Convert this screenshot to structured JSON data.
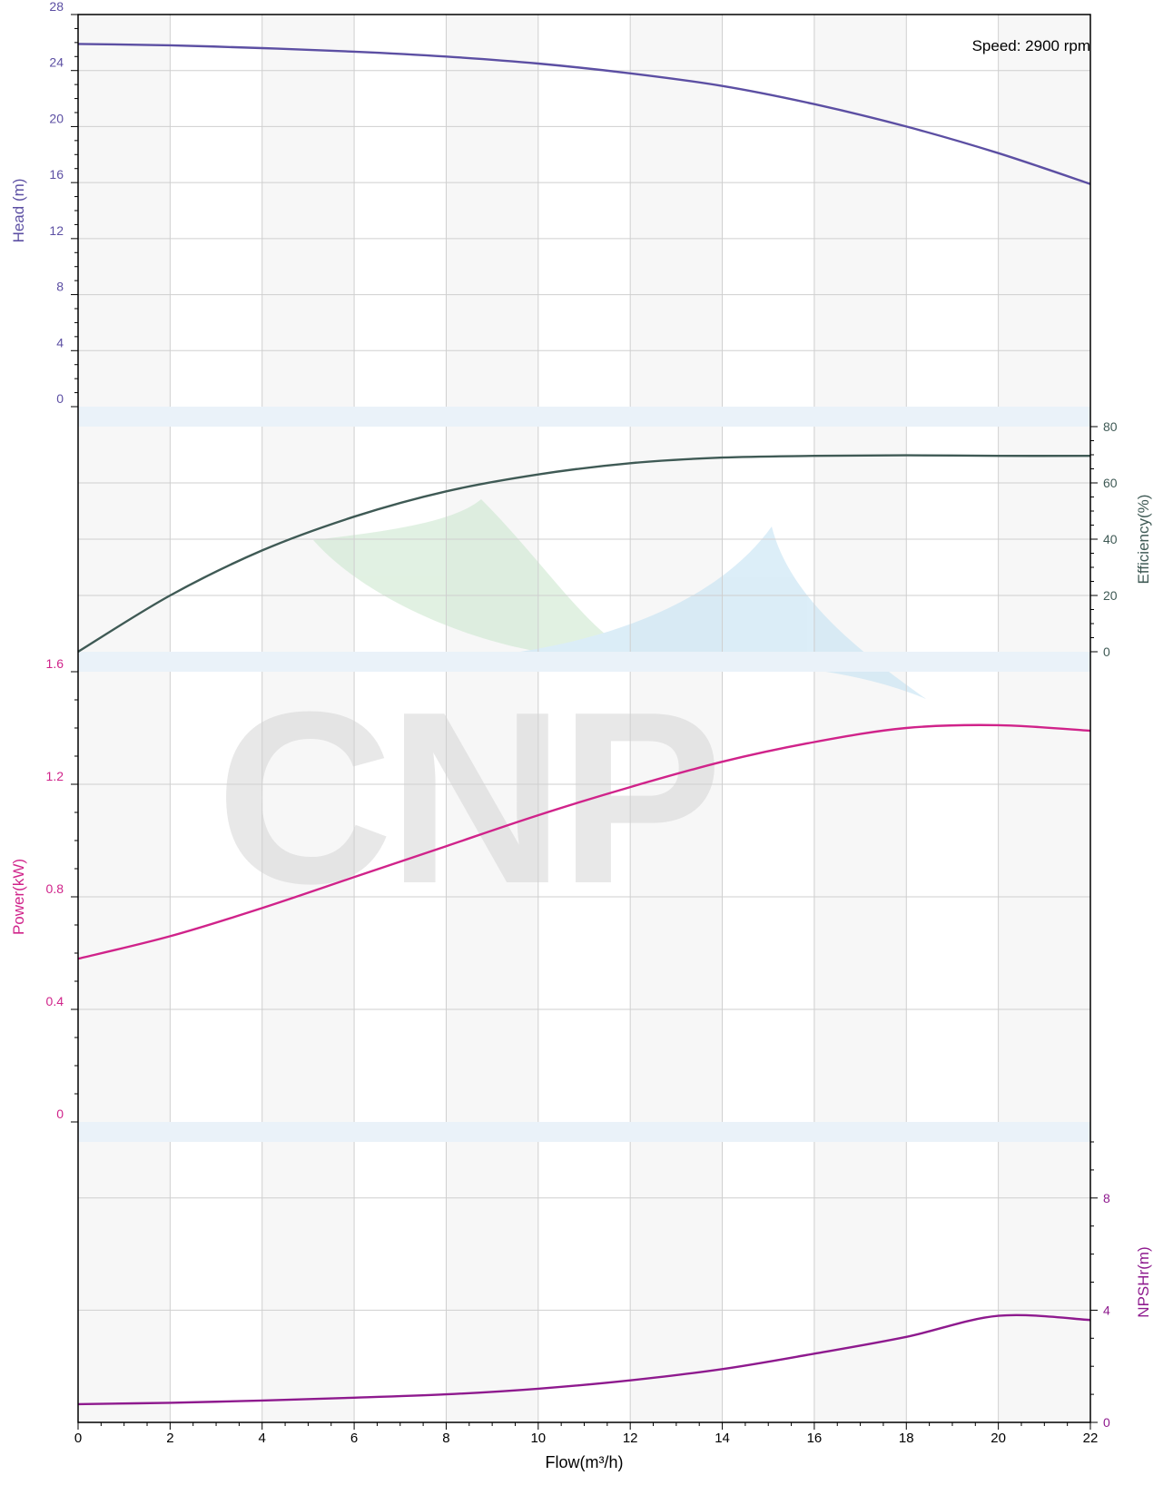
{
  "chart_data": {
    "type": "line",
    "annotation": "Speed: 2900 rpm",
    "x_axis": {
      "label": "Flow(m³/h)",
      "range": [
        0,
        22
      ],
      "ticks": [
        0,
        2,
        4,
        6,
        8,
        10,
        12,
        14,
        16,
        18,
        20,
        22
      ]
    },
    "grid": true,
    "watermark_text": "CNP",
    "colors": {
      "head": "#5c4fa3",
      "efficiency": "#3f5a55",
      "power": "#d0238a",
      "npsh": "#8e1a8e",
      "band": "#eaf2f9",
      "grid": "#cfcfcf"
    },
    "panels": [
      {
        "id": "head",
        "ylabel": "Head (m)",
        "axis_side": "left",
        "ylim": [
          0,
          28
        ],
        "ticks": [
          0,
          4,
          8,
          12,
          16,
          20,
          24,
          28
        ],
        "series": {
          "x": [
            0,
            2,
            4,
            6,
            8,
            10,
            12,
            14,
            16,
            18,
            20,
            22
          ],
          "y": [
            25.9,
            25.8,
            25.6,
            25.35,
            25.0,
            24.5,
            23.8,
            22.9,
            21.6,
            20.0,
            18.1,
            15.9
          ]
        }
      },
      {
        "id": "efficiency",
        "ylabel": "Efficiency(%)",
        "axis_side": "right",
        "ylim": [
          0,
          80
        ],
        "ticks": [
          0,
          20,
          40,
          60,
          80
        ],
        "series": {
          "x": [
            0,
            2,
            4,
            6,
            8,
            10,
            12,
            14,
            16,
            18,
            20,
            22
          ],
          "y": [
            0,
            20,
            36,
            48,
            57,
            63,
            67,
            69,
            69.6,
            69.8,
            69.6,
            69.6
          ]
        }
      },
      {
        "id": "power",
        "ylabel": "Power(kW)",
        "axis_side": "left",
        "ylim": [
          0,
          1.6
        ],
        "ticks": [
          "0",
          "0.4",
          "0.8",
          "1.2",
          "1.6"
        ],
        "series": {
          "x": [
            0,
            2,
            4,
            6,
            8,
            10,
            12,
            14,
            16,
            18,
            20,
            22
          ],
          "y": [
            0.58,
            0.66,
            0.76,
            0.87,
            0.98,
            1.09,
            1.19,
            1.28,
            1.35,
            1.4,
            1.41,
            1.39
          ]
        }
      },
      {
        "id": "npsh",
        "ylabel": "NPSHr(m)",
        "axis_side": "right",
        "ylim": [
          0,
          10
        ],
        "ticks": [
          0,
          4,
          8
        ],
        "series": {
          "x": [
            0,
            2,
            4,
            6,
            8,
            10,
            12,
            14,
            16,
            18,
            20,
            22
          ],
          "y": [
            0.65,
            0.7,
            0.78,
            0.88,
            1.0,
            1.2,
            1.5,
            1.9,
            2.45,
            3.05,
            3.8,
            3.65
          ]
        }
      }
    ]
  }
}
